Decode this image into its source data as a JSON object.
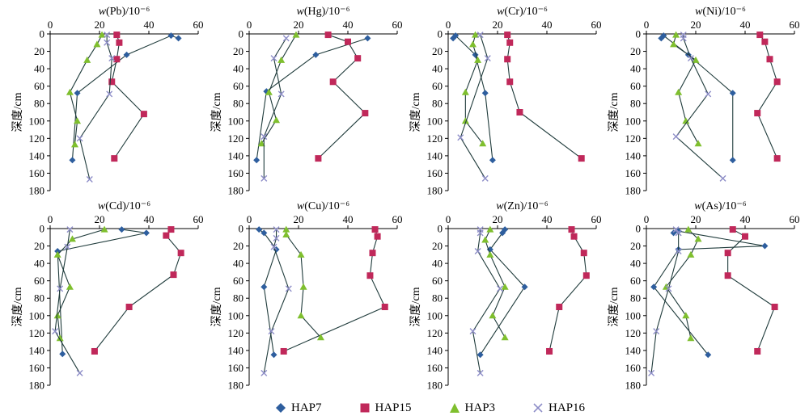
{
  "chart_data": {
    "type": "line",
    "ylabel": "深度/cm",
    "xlim": [
      0,
      60
    ],
    "ylim": [
      0,
      180
    ],
    "x_ticks": [
      0,
      20,
      40,
      60
    ],
    "y_ticks": [
      0,
      20,
      40,
      60,
      80,
      100,
      120,
      140,
      160,
      180
    ],
    "colors": {
      "HAP7": "#2E5E9E",
      "HAP15": "#C0285A",
      "HAP3": "#7FBF2E",
      "HAP16": "#8E8EC8",
      "line": "#1F3B3B"
    },
    "legend": [
      "HAP7",
      "HAP15",
      "HAP3",
      "HAP16"
    ],
    "panels": [
      {
        "title": "w(Pb)/10⁻⁶",
        "series": [
          {
            "name": "HAP7",
            "x": [
              52,
              49,
              31,
              11,
              9
            ],
            "y": [
              5,
              2,
              24,
              68,
              145
            ]
          },
          {
            "name": "HAP15",
            "x": [
              27,
              28,
              27,
              25,
              38,
              26
            ],
            "y": [
              1,
              10,
              29,
              55,
              92,
              143
            ]
          },
          {
            "name": "HAP3",
            "x": [
              21,
              19,
              15,
              8,
              11,
              10
            ],
            "y": [
              1,
              12,
              30,
              67,
              100,
              127
            ]
          },
          {
            "name": "HAP16",
            "x": [
              23,
              23,
              25,
              24,
              12,
              16
            ],
            "y": [
              1,
              10,
              28,
              69,
              120,
              167
            ]
          }
        ]
      },
      {
        "title": "w(Hg)/10⁻⁶",
        "series": [
          {
            "name": "HAP7",
            "x": [
              48,
              27,
              7,
              3
            ],
            "y": [
              5,
              24,
              66,
              145
            ]
          },
          {
            "name": "HAP15",
            "x": [
              32,
              40,
              44,
              34,
              47,
              28
            ],
            "y": [
              1,
              9,
              28,
              55,
              91,
              143
            ]
          },
          {
            "name": "HAP3",
            "x": [
              19,
              13,
              8,
              11,
              5
            ],
            "y": [
              1,
              30,
              67,
              99,
              126
            ]
          },
          {
            "name": "HAP16",
            "x": [
              15,
              10,
              13,
              6,
              6
            ],
            "y": [
              5,
              28,
              69,
              118,
              166
            ]
          }
        ]
      },
      {
        "title": "w(Cr)/10⁻⁶",
        "series": [
          {
            "name": "HAP7",
            "x": [
              2,
              3,
              11,
              15,
              18
            ],
            "y": [
              5,
              2,
              24,
              68,
              145
            ]
          },
          {
            "name": "HAP15",
            "x": [
              24,
              25,
              24,
              25,
              29,
              54
            ],
            "y": [
              1,
              10,
              29,
              55,
              90,
              143
            ]
          },
          {
            "name": "HAP3",
            "x": [
              11,
              10,
              12,
              7,
              7,
              14
            ],
            "y": [
              1,
              12,
              30,
              67,
              100,
              126
            ]
          },
          {
            "name": "HAP16",
            "x": [
              13,
              16,
              5,
              15
            ],
            "y": [
              1,
              28,
              119,
              166
            ]
          }
        ]
      },
      {
        "title": "w(Ni)/10⁻⁶",
        "series": [
          {
            "name": "HAP7",
            "x": [
              6,
              7,
              17,
              35,
              35
            ],
            "y": [
              5,
              2,
              24,
              68,
              145
            ]
          },
          {
            "name": "HAP15",
            "x": [
              46,
              48,
              50,
              53,
              45,
              53
            ],
            "y": [
              1,
              9,
              29,
              55,
              91,
              143
            ]
          },
          {
            "name": "HAP3",
            "x": [
              12,
              11,
              20,
              13,
              16,
              21
            ],
            "y": [
              1,
              12,
              30,
              67,
              100,
              126
            ]
          },
          {
            "name": "HAP16",
            "x": [
              15,
              15,
              18,
              25,
              12,
              31
            ],
            "y": [
              1,
              5,
              28,
              69,
              118,
              166
            ]
          }
        ]
      },
      {
        "title": "w(Cd)/10⁻⁶",
        "series": [
          {
            "name": "HAP7",
            "x": [
              29,
              39,
              3,
              5
            ],
            "y": [
              1,
              5,
              26,
              144
            ]
          },
          {
            "name": "HAP15",
            "x": [
              49,
              47,
              53,
              50,
              32,
              18
            ],
            "y": [
              1,
              8,
              28,
              53,
              90,
              141
            ]
          },
          {
            "name": "HAP3",
            "x": [
              22,
              9,
              3,
              8,
              3,
              4
            ],
            "y": [
              1,
              12,
              30,
              67,
              100,
              126
            ]
          },
          {
            "name": "HAP16",
            "x": [
              8,
              7,
              4,
              2,
              12
            ],
            "y": [
              1,
              21,
              69,
              118,
              166
            ]
          }
        ]
      },
      {
        "title": "w(Cu)/10⁻⁶",
        "series": [
          {
            "name": "HAP7",
            "x": [
              4,
              6,
              11,
              6,
              10
            ],
            "y": [
              1,
              5,
              24,
              67,
              145
            ]
          },
          {
            "name": "HAP15",
            "x": [
              51,
              52,
              50,
              49,
              55,
              14
            ],
            "y": [
              1,
              9,
              28,
              54,
              90,
              141
            ]
          },
          {
            "name": "HAP3",
            "x": [
              15,
              15,
              21,
              22,
              21,
              29
            ],
            "y": [
              1,
              7,
              30,
              67,
              100,
              125
            ]
          },
          {
            "name": "HAP16",
            "x": [
              11,
              11,
              10,
              16,
              9,
              6
            ],
            "y": [
              1,
              11,
              21,
              69,
              118,
              166
            ]
          }
        ]
      },
      {
        "title": "w(Zn)/10⁻⁶",
        "series": [
          {
            "name": "HAP7",
            "x": [
              23,
              22,
              17,
              31,
              13
            ],
            "y": [
              1,
              5,
              24,
              67,
              145
            ]
          },
          {
            "name": "HAP15",
            "x": [
              50,
              51,
              55,
              56,
              45,
              41
            ],
            "y": [
              1,
              9,
              28,
              54,
              90,
              141
            ]
          },
          {
            "name": "HAP3",
            "x": [
              17,
              15,
              17,
              23,
              18,
              23
            ],
            "y": [
              1,
              13,
              30,
              67,
              100,
              125
            ]
          },
          {
            "name": "HAP16",
            "x": [
              13,
              13,
              12,
              21,
              10,
              13
            ],
            "y": [
              1,
              5,
              26,
              69,
              118,
              166
            ]
          }
        ]
      },
      {
        "title": "w(As)/10⁻⁶",
        "series": [
          {
            "name": "HAP7",
            "x": [
              11,
              13,
              48,
              13,
              3,
              25
            ],
            "y": [
              5,
              3,
              20,
              24,
              67,
              145
            ]
          },
          {
            "name": "HAP15",
            "x": [
              35,
              40,
              33,
              33,
              52,
              45
            ],
            "y": [
              1,
              9,
              28,
              54,
              90,
              141
            ]
          },
          {
            "name": "HAP3",
            "x": [
              17,
              21,
              18,
              8,
              16,
              18
            ],
            "y": [
              1,
              12,
              30,
              67,
              100,
              126
            ]
          },
          {
            "name": "HAP16",
            "x": [
              12,
              13,
              13,
              9,
              4,
              2
            ],
            "y": [
              1,
              5,
              26,
              69,
              118,
              166
            ]
          }
        ]
      }
    ]
  }
}
